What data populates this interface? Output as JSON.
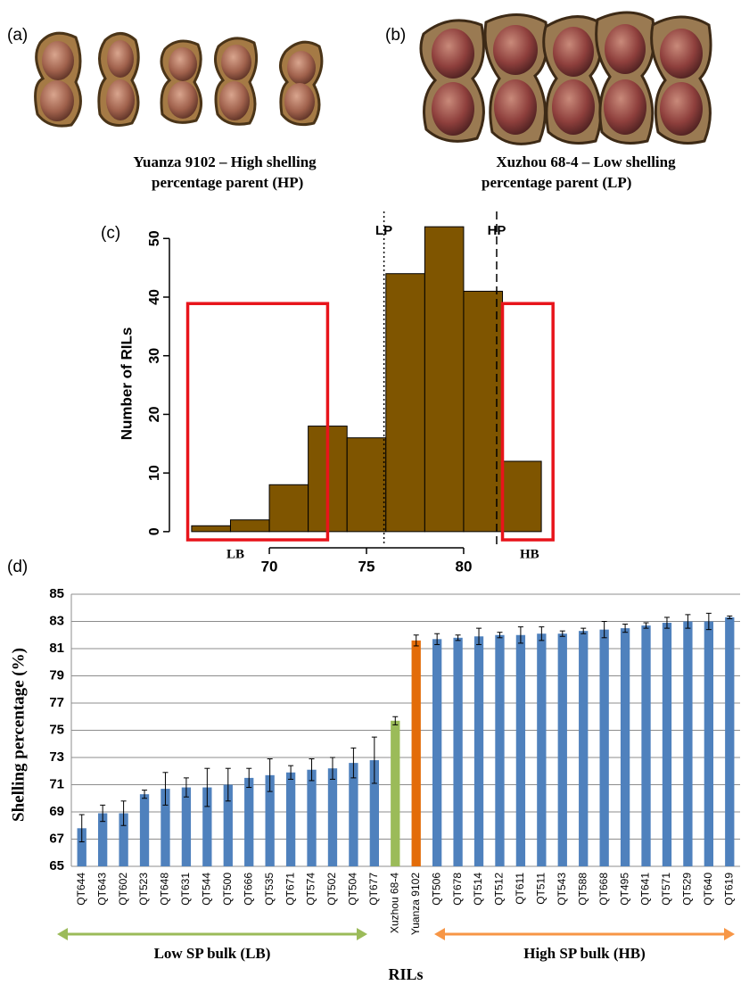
{
  "panel_labels": [
    "(a)",
    "(b)",
    "(c)",
    "(d)"
  ],
  "photos": [
    {
      "caption_lines": [
        "Yuanza 9102 – High shelling",
        "percentage parent (HP)"
      ]
    },
    {
      "caption_lines": [
        "Xuzhou 68-4 – Low shelling",
        "percentage parent (LP)"
      ]
    }
  ],
  "chart_data": [
    {
      "type": "histogram",
      "y_label": "Number of RILs",
      "bins": [
        66,
        68,
        70,
        72,
        74,
        76,
        78,
        80,
        82,
        84
      ],
      "counts": [
        1,
        2,
        8,
        18,
        16,
        44,
        52,
        41,
        12
      ],
      "color": "#7f5500",
      "xlim": [
        65.5,
        84.5
      ],
      "xticks": [
        70,
        75,
        80
      ],
      "ylim": [
        -2,
        54
      ],
      "yticks": [
        0,
        10,
        20,
        30,
        40,
        50
      ],
      "reference_lines": [
        {
          "label": "LP",
          "x": 75.9,
          "style": "dotted"
        },
        {
          "label": "HP",
          "x": 81.7,
          "style": "dashed"
        }
      ],
      "highlight_boxes": [
        {
          "label": "LB",
          "x": [
            65.8,
            73.0
          ],
          "y": [
            -1.4,
            38.9
          ],
          "color": "#e8141b"
        },
        {
          "label": "HB",
          "x": [
            82.0,
            84.6
          ],
          "y": [
            -1.4,
            38.9
          ],
          "color": "#e8141b"
        }
      ]
    },
    {
      "type": "bar",
      "x_label": "RILs",
      "y_label": "Shelling percentage (%)",
      "categories": [
        "QT644",
        "QT643",
        "QT602",
        "QT523",
        "QT648",
        "QT631",
        "QT544",
        "QT500",
        "QT666",
        "QT535",
        "QT671",
        "QT574",
        "QT502",
        "QT504",
        "QT677",
        "Xuzhou 68-4",
        "Yuanza 9102",
        "QT506",
        "QT678",
        "QT514",
        "QT512",
        "QT611",
        "QT511",
        "QT543",
        "QT588",
        "QT668",
        "QT495",
        "QT641",
        "QT571",
        "QT529",
        "QT640",
        "QT619"
      ],
      "values": [
        67.8,
        68.9,
        68.9,
        70.3,
        70.7,
        70.8,
        70.8,
        71.0,
        71.5,
        71.7,
        71.9,
        72.1,
        72.2,
        72.6,
        72.8,
        75.7,
        81.6,
        81.7,
        81.8,
        81.9,
        82.0,
        82.0,
        82.1,
        82.1,
        82.3,
        82.4,
        82.5,
        82.7,
        82.9,
        83.0,
        83.0,
        83.3
      ],
      "errors": [
        1.0,
        0.6,
        0.9,
        0.3,
        1.2,
        0.7,
        1.4,
        1.2,
        0.7,
        1.2,
        0.5,
        0.8,
        0.8,
        1.1,
        1.7,
        0.3,
        0.4,
        0.4,
        0.2,
        0.6,
        0.2,
        0.6,
        0.5,
        0.2,
        0.2,
        0.6,
        0.3,
        0.2,
        0.4,
        0.5,
        0.6,
        0.1
      ],
      "colors": [
        "#4f81bd",
        "#4f81bd",
        "#4f81bd",
        "#4f81bd",
        "#4f81bd",
        "#4f81bd",
        "#4f81bd",
        "#4f81bd",
        "#4f81bd",
        "#4f81bd",
        "#4f81bd",
        "#4f81bd",
        "#4f81bd",
        "#4f81bd",
        "#4f81bd",
        "#9bbb59",
        "#e36c09",
        "#4f81bd",
        "#4f81bd",
        "#4f81bd",
        "#4f81bd",
        "#4f81bd",
        "#4f81bd",
        "#4f81bd",
        "#4f81bd",
        "#4f81bd",
        "#4f81bd",
        "#4f81bd",
        "#4f81bd",
        "#4f81bd",
        "#4f81bd",
        "#4f81bd"
      ],
      "ylim": [
        65,
        85
      ],
      "yticks": [
        65,
        67,
        69,
        71,
        73,
        75,
        77,
        79,
        81,
        83,
        85
      ],
      "grid": true,
      "bulks": [
        {
          "label": "Low SP bulk (LB)",
          "color": "#9bbb59"
        },
        {
          "label": "High SP bulk (HB)",
          "color": "#f79646"
        }
      ]
    }
  ]
}
